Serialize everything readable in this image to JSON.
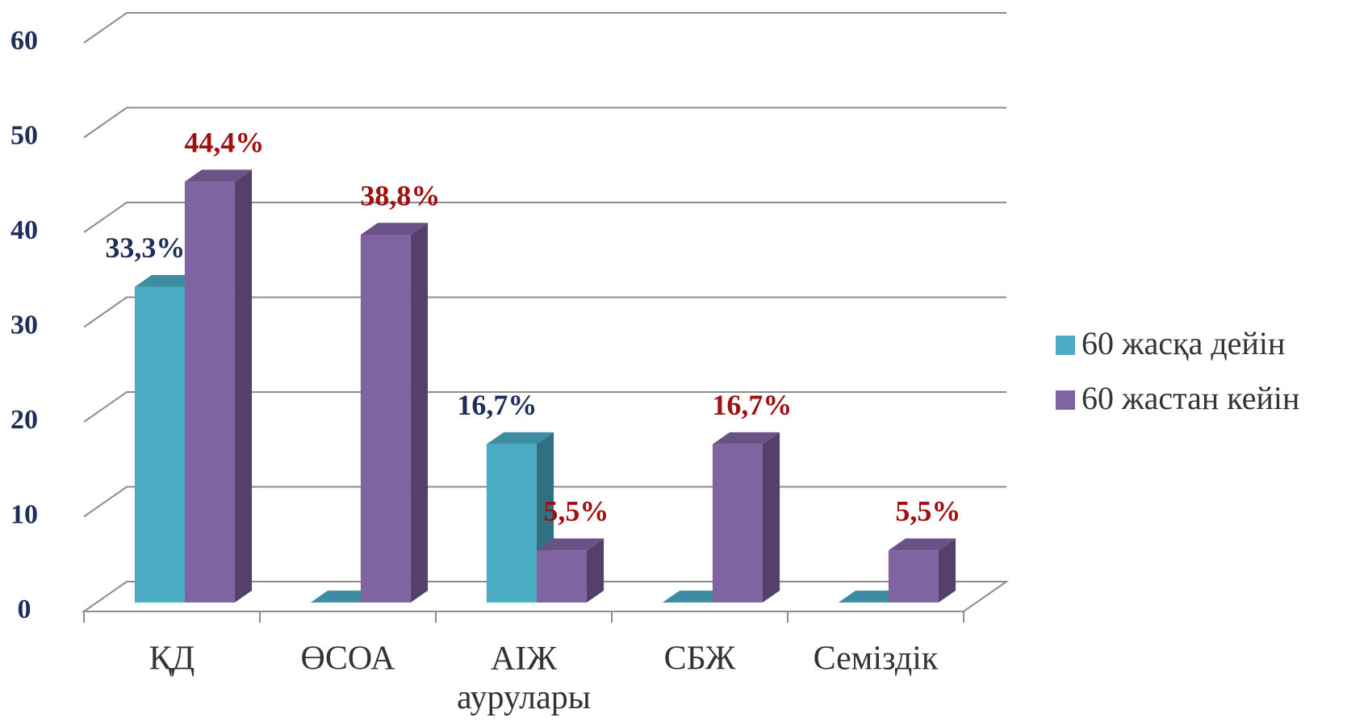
{
  "chart_data": {
    "type": "bar3d",
    "categories": [
      "ҚД",
      "ӨСОА",
      "АІЖ аурулары",
      "СБЖ",
      "Семіздік"
    ],
    "series": [
      {
        "name": "60 жасқа дейін",
        "color": "#4bacc6",
        "label_color": "#1f2d5a",
        "values": [
          33.3,
          0,
          16.7,
          0,
          0
        ],
        "value_labels": [
          "33,3%",
          null,
          "16,7%",
          null,
          null
        ]
      },
      {
        "name": "60 жастан кейін",
        "color": "#8064a2",
        "label_color": "#a01010",
        "values": [
          44.4,
          38.8,
          5.5,
          16.7,
          5.5
        ],
        "value_labels": [
          "44,4%",
          "38,8%",
          "5,5%",
          "16,7%",
          "5,5%"
        ]
      }
    ],
    "ylim": [
      0,
      60
    ],
    "yticks": [
      0,
      10,
      20,
      30,
      40,
      50,
      60
    ],
    "grid": true,
    "legend": "right"
  }
}
